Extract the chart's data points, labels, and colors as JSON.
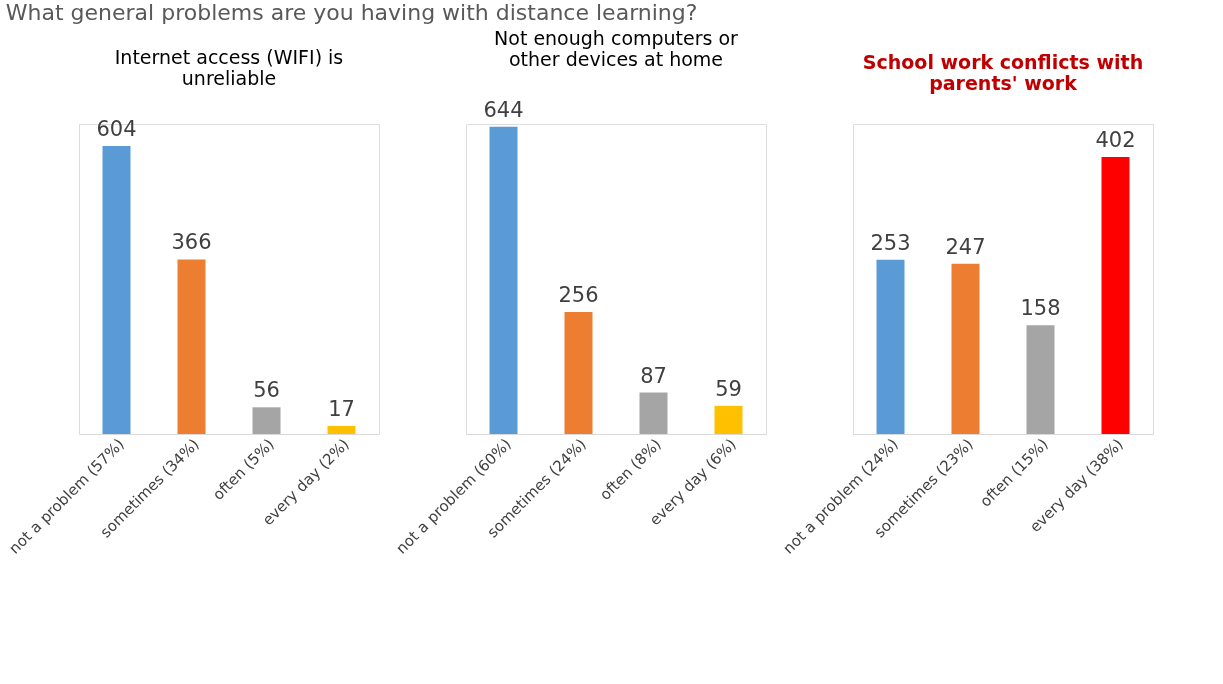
{
  "chart_data": [
    {
      "type": "bar",
      "title": "Internet access (WIFI) is unreliable",
      "annotations": [
        "What general problems are you having with distance learning?"
      ],
      "categories": [
        "not a problem (57%)",
        "sometimes (34%)",
        "often (5%)",
        "every day (2%)"
      ],
      "values": [
        604,
        366,
        56,
        17
      ],
      "colors": [
        "#5b9bd5",
        "#ed7d31",
        "#a5a5a5",
        "#ffc000"
      ],
      "data_labels": true,
      "legend": false,
      "grid": false
    },
    {
      "type": "bar",
      "title": "Not enough computers or other devices at home",
      "categories": [
        "not a problem (60%)",
        "sometimes (24%)",
        "often (8%)",
        "every day (6%)"
      ],
      "values": [
        644,
        256,
        87,
        59
      ],
      "colors": [
        "#5b9bd5",
        "#ed7d31",
        "#a5a5a5",
        "#ffc000"
      ],
      "data_labels": true,
      "legend": false,
      "grid": false
    },
    {
      "type": "bar",
      "title": "School work conflicts with parents' work",
      "categories": [
        "not a problem (24%)",
        "sometimes (23%)",
        "often (15%)",
        "every day (38%)"
      ],
      "values": [
        253,
        247,
        158,
        402
      ],
      "colors": [
        "#5b9bd5",
        "#ed7d31",
        "#a5a5a5",
        "#ff0000"
      ],
      "data_labels": true,
      "legend": false,
      "grid": false
    }
  ]
}
